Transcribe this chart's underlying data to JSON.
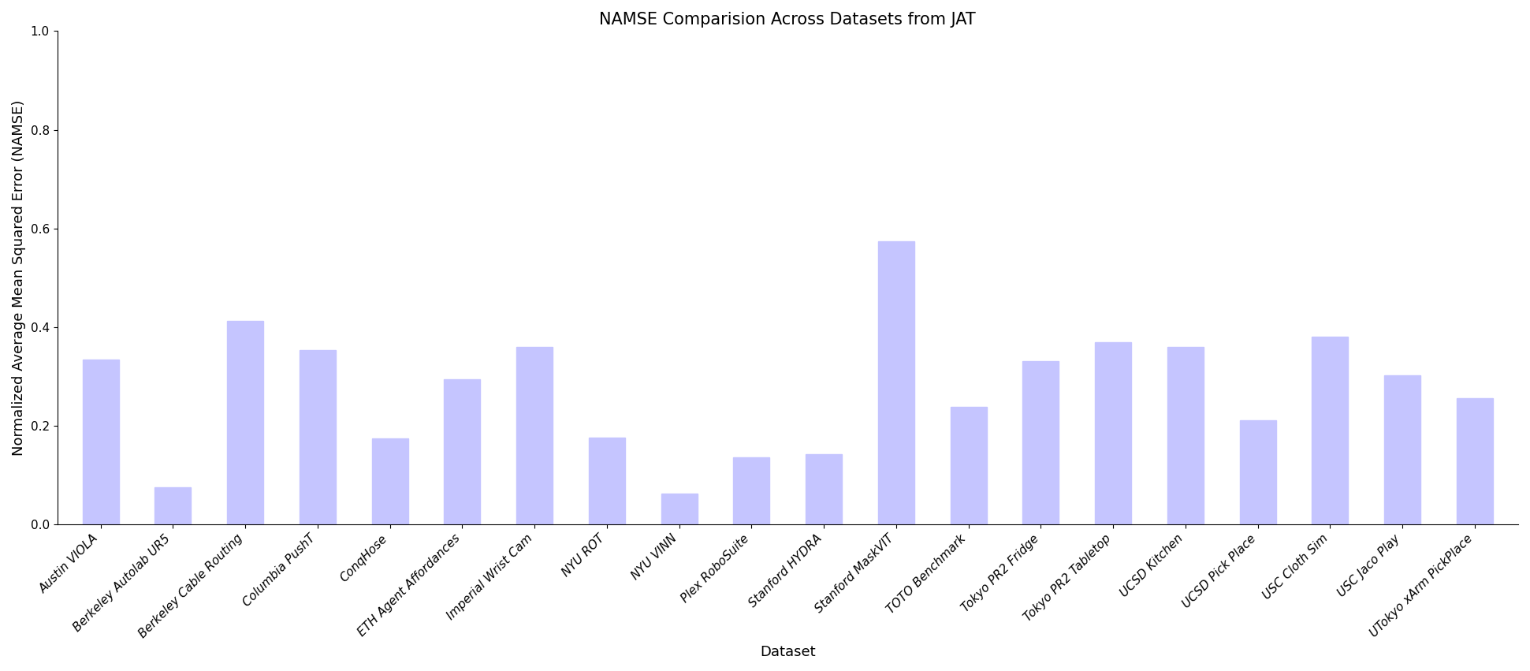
{
  "title": "NAMSE Comparision Across Datasets from JAT",
  "xlabel": "Dataset",
  "ylabel": "Normalized Average Mean Squared Error (NAMSE)",
  "categories": [
    "Austin VIOLA",
    "Berkeley Autolab UR5",
    "Berkeley Cable Routing",
    "Columbia PushT",
    "ConqHose",
    "ETH Agent Affordances",
    "Imperial Wrist Cam",
    "NYU ROT",
    "NYU VINN",
    "Plex RoboSuite",
    "Stanford HYDRA",
    "Stanford MaskVIT",
    "TOTO Benchmark",
    "Tokyo PR2 Fridge",
    "Tokyo PR2 Tabletop",
    "UCSD Kitchen",
    "UCSD Pick Place",
    "USC Cloth Sim",
    "USC Jaco Play",
    "UTokyo xArm PickPlace"
  ],
  "values": [
    0.335,
    0.075,
    0.413,
    0.353,
    0.175,
    0.295,
    0.36,
    0.176,
    0.063,
    0.137,
    0.143,
    0.574,
    0.238,
    0.332,
    0.37,
    0.36,
    0.211,
    0.381,
    0.302,
    0.256
  ],
  "bar_color": "#c5c5ff",
  "bar_width": 0.5,
  "ylim": [
    0.0,
    1.0
  ],
  "yticks": [
    0.0,
    0.2,
    0.4,
    0.6,
    0.8,
    1.0
  ],
  "title_fontsize": 15,
  "label_fontsize": 13,
  "tick_fontsize": 11,
  "background_color": "#ffffff"
}
